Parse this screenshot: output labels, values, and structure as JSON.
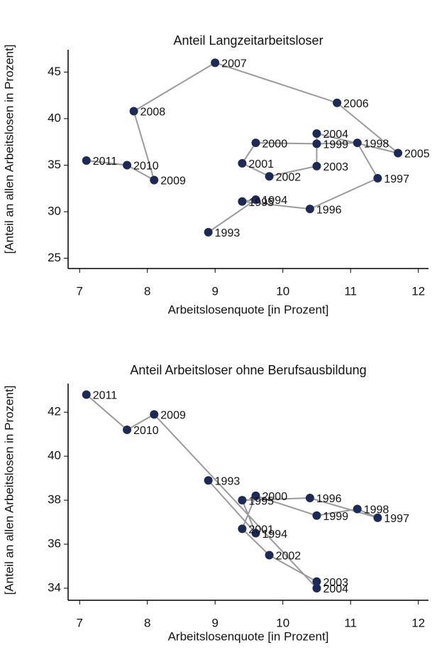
{
  "chart_data": [
    {
      "type": "scatter",
      "title": "Anteil Langzeitarbeitsloser",
      "x_label": "Arbeitslosenquote [in Prozent]",
      "y_label": "[Anteil an allen Arbeitslosen in Prozent]",
      "color": "#1b2a57",
      "line_color": "#9a9a9a",
      "x": [
        8.9,
        9.6,
        9.4,
        10.4,
        11.4,
        11.1,
        10.5,
        9.6,
        9.4,
        9.8,
        10.5,
        10.5,
        11.7,
        10.8,
        9.0,
        7.8,
        8.1,
        7.7,
        7.1
      ],
      "values": [
        27.8,
        31.3,
        31.1,
        30.3,
        33.6,
        37.4,
        37.3,
        37.4,
        35.2,
        33.8,
        34.9,
        38.4,
        36.3,
        41.7,
        46.0,
        40.8,
        33.4,
        35.0,
        35.5
      ],
      "labels": [
        "1993",
        "1994",
        "1995",
        "1996",
        "1997",
        "1998",
        "1999",
        "2000",
        "2001",
        "2002",
        "2003",
        "2004",
        "2005",
        "2006",
        "2007",
        "2008",
        "2009",
        "2010",
        "2011"
      ],
      "xlim": [
        6.83,
        12.15
      ],
      "xticks": [
        7,
        8,
        9,
        10,
        11,
        12
      ],
      "ylim": [
        23.9,
        47.4
      ],
      "yticks": [
        25,
        30,
        35,
        40,
        45
      ]
    },
    {
      "type": "scatter",
      "title": "Anteil Arbeitsloser ohne Berufsausbildung",
      "x_label": "Arbeitslosenquote [in Prozent]",
      "y_label": "[Anteil an allen Arbeitslosen in Prozent]",
      "color": "#1b2a57",
      "line_color": "#9a9a9a",
      "x": [
        8.9,
        9.6,
        9.4,
        10.4,
        11.4,
        11.1,
        10.5,
        9.6,
        9.4,
        9.8,
        10.5,
        10.5,
        8.1,
        7.7,
        7.1
      ],
      "values": [
        38.9,
        36.5,
        38.0,
        38.1,
        37.2,
        37.6,
        37.3,
        38.2,
        36.7,
        35.5,
        34.3,
        34.0,
        41.9,
        41.2,
        42.8
      ],
      "labels": [
        "1993",
        "1994",
        "1995",
        "1996",
        "1997",
        "1998",
        "1999",
        "2000",
        "2001",
        "2002",
        "2003",
        "2004",
        "2009",
        "2010",
        "2011"
      ],
      "xlim": [
        6.83,
        12.15
      ],
      "xticks": [
        7,
        8,
        9,
        10,
        11,
        12
      ],
      "ylim": [
        33.45,
        43.3
      ],
      "yticks": [
        34,
        36,
        38,
        40,
        42
      ]
    }
  ]
}
